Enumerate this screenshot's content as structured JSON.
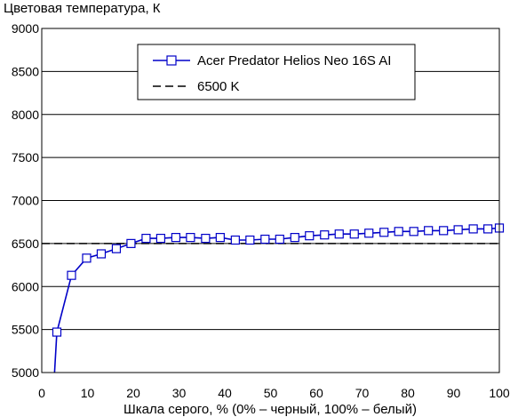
{
  "chart_data": {
    "type": "line",
    "title": "",
    "ylabel": "Цветовая температура, К",
    "xlabel": "Шкала серого, % (0% – черный, 100% – белый)",
    "xlim": [
      0,
      100
    ],
    "ylim": [
      5000,
      9000
    ],
    "x_ticks": [
      "0",
      "10",
      "20",
      "30",
      "40",
      "50",
      "60",
      "70",
      "80",
      "90",
      "100"
    ],
    "y_ticks": [
      "5000",
      "5500",
      "6000",
      "6500",
      "7000",
      "7500",
      "8000",
      "8500",
      "9000"
    ],
    "grid": "horizontal",
    "legend_position": "top-center",
    "colors": {
      "series": "#0000c8",
      "reference": "#000000",
      "grid": "#000000"
    },
    "series": [
      {
        "name": "Acer Predator Helios Neo 16S AI",
        "style": "line-square-markers",
        "lead_in": [
          [
            2.8,
            5000
          ]
        ],
        "x": [
          3.3,
          6.5,
          9.8,
          13.0,
          16.3,
          19.5,
          22.8,
          26.0,
          29.3,
          32.5,
          35.8,
          39.0,
          42.3,
          45.5,
          48.8,
          52.0,
          55.3,
          58.5,
          61.8,
          65.0,
          68.3,
          71.5,
          74.8,
          78.0,
          81.3,
          84.5,
          87.8,
          91.0,
          94.3,
          97.5,
          100.0
        ],
        "y": [
          5470,
          6130,
          6330,
          6380,
          6440,
          6500,
          6560,
          6560,
          6570,
          6570,
          6560,
          6570,
          6540,
          6540,
          6550,
          6550,
          6570,
          6590,
          6600,
          6610,
          6610,
          6620,
          6630,
          6640,
          6640,
          6650,
          6650,
          6660,
          6670,
          6670,
          6680
        ]
      },
      {
        "name": "6500 K",
        "style": "dashed",
        "x": [
          0,
          100
        ],
        "y": [
          6500,
          6500
        ]
      }
    ]
  }
}
